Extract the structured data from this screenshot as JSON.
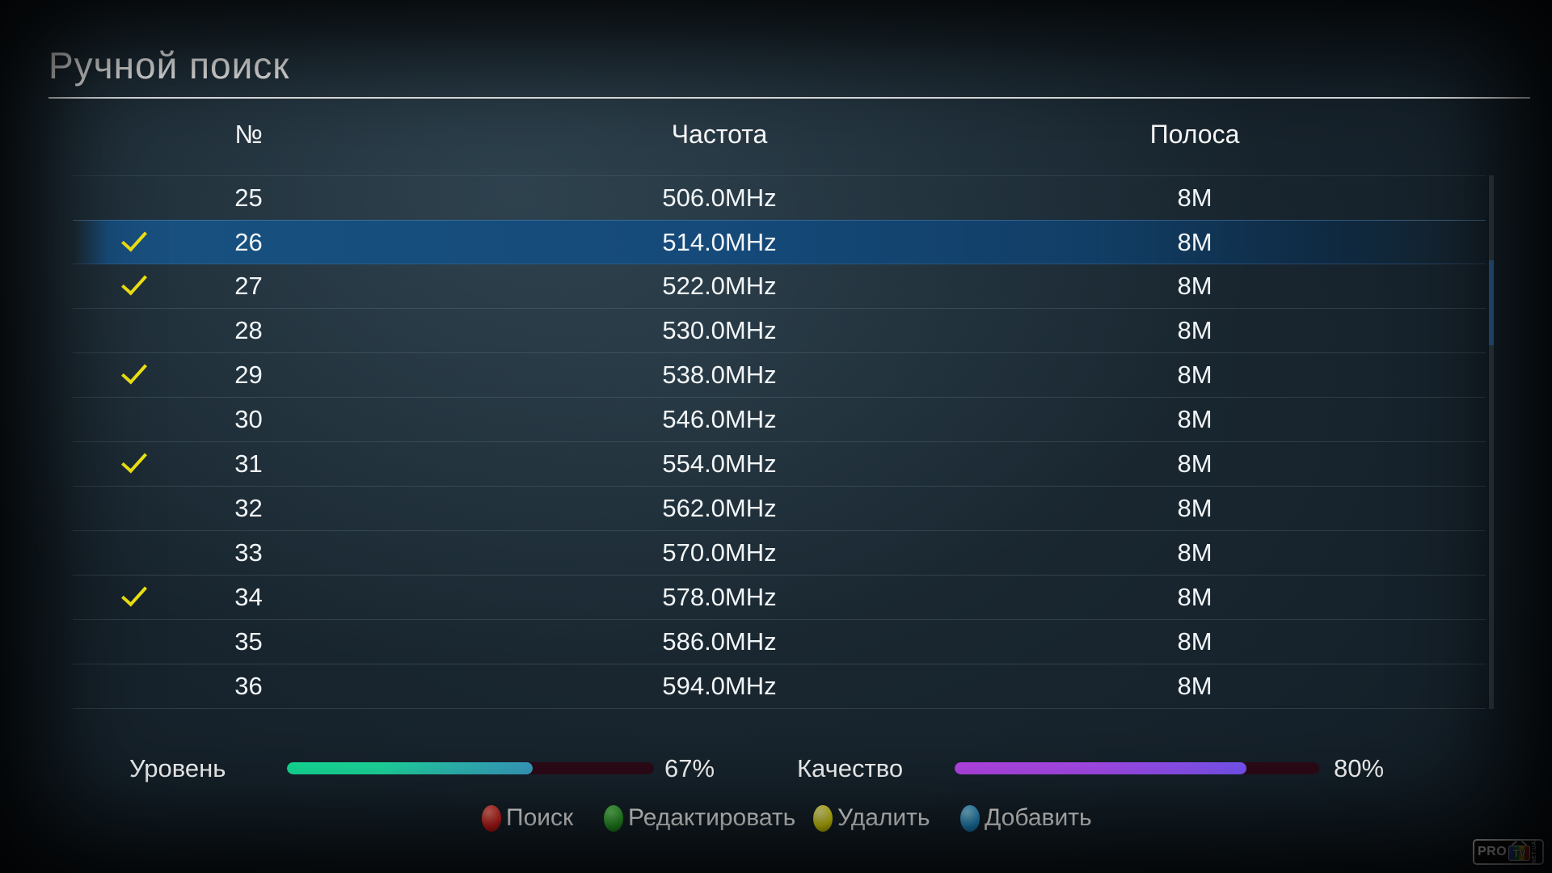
{
  "title": "Ручной поиск",
  "table": {
    "headers": {
      "num": "№",
      "freq": "Частота",
      "band": "Полоса"
    },
    "rows": [
      {
        "num": "25",
        "freq": "506.0MHz",
        "band": "8M",
        "checked": false,
        "selected": false
      },
      {
        "num": "26",
        "freq": "514.0MHz",
        "band": "8M",
        "checked": true,
        "selected": true
      },
      {
        "num": "27",
        "freq": "522.0MHz",
        "band": "8M",
        "checked": true,
        "selected": false
      },
      {
        "num": "28",
        "freq": "530.0MHz",
        "band": "8M",
        "checked": false,
        "selected": false
      },
      {
        "num": "29",
        "freq": "538.0MHz",
        "band": "8M",
        "checked": true,
        "selected": false
      },
      {
        "num": "30",
        "freq": "546.0MHz",
        "band": "8M",
        "checked": false,
        "selected": false
      },
      {
        "num": "31",
        "freq": "554.0MHz",
        "band": "8M",
        "checked": true,
        "selected": false
      },
      {
        "num": "32",
        "freq": "562.0MHz",
        "band": "8M",
        "checked": false,
        "selected": false
      },
      {
        "num": "33",
        "freq": "570.0MHz",
        "band": "8M",
        "checked": false,
        "selected": false
      },
      {
        "num": "34",
        "freq": "578.0MHz",
        "band": "8M",
        "checked": true,
        "selected": false
      },
      {
        "num": "35",
        "freq": "586.0MHz",
        "band": "8M",
        "checked": false,
        "selected": false
      },
      {
        "num": "36",
        "freq": "594.0MHz",
        "band": "8M",
        "checked": false,
        "selected": false
      }
    ]
  },
  "signal": {
    "level": {
      "label": "Уровень",
      "percent": 67,
      "text": "67%"
    },
    "quality": {
      "label": "Качество",
      "percent": 80,
      "text": "80%"
    }
  },
  "legend": {
    "items": [
      {
        "key": "red",
        "label": "Поиск",
        "color": "#e02020"
      },
      {
        "key": "green",
        "label": "Редактировать",
        "color": "#2aa82a"
      },
      {
        "key": "yellow",
        "label": "Удалить",
        "color": "#ece407"
      },
      {
        "key": "blue",
        "label": "Добавить",
        "color": "#2397d6"
      }
    ]
  },
  "logo": {
    "pro": "PRO",
    "tv": "TV",
    "net": "NET.UA"
  },
  "colors": {
    "selected_row": "#154a7a",
    "check": "#f0e412",
    "level_fill_start": "#14e59c",
    "level_fill_end": "#3aa2c6",
    "quality_fill_start": "#bb47ee",
    "quality_fill_end": "#7b57ff",
    "bar_track": "#2e0a18",
    "scrollbar_thumb": "#31639a"
  }
}
